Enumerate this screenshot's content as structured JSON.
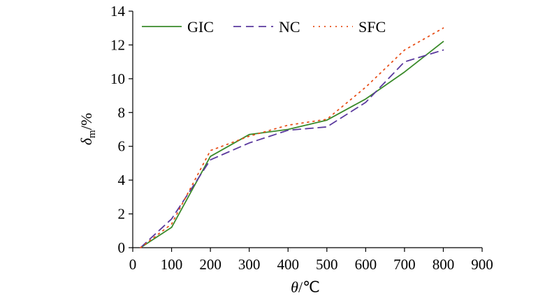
{
  "chart_data": {
    "type": "line",
    "x": [
      20,
      100,
      200,
      300,
      400,
      500,
      600,
      700,
      800
    ],
    "series": [
      {
        "name": "GIC",
        "values": [
          0,
          1.2,
          5.4,
          6.7,
          7.0,
          7.55,
          8.8,
          10.4,
          12.2
        ],
        "color": "#3a8a2a",
        "style": "solid"
      },
      {
        "name": "NC",
        "values": [
          0,
          1.7,
          5.2,
          6.2,
          6.95,
          7.15,
          8.6,
          11.0,
          11.7
        ],
        "color": "#5b3a9e",
        "style": "dashed"
      },
      {
        "name": "SFC",
        "values": [
          0,
          1.4,
          5.75,
          6.6,
          7.25,
          7.6,
          9.5,
          11.7,
          13.0
        ],
        "color": "#e8501a",
        "style": "dotted"
      }
    ],
    "xlim": [
      0,
      900
    ],
    "ylim": [
      0,
      14
    ],
    "xticks": [
      "0",
      "100",
      "200",
      "300",
      "400",
      "500",
      "600",
      "700",
      "800",
      "900"
    ],
    "yticks": [
      "0",
      "2",
      "4",
      "6",
      "8",
      "10",
      "12",
      "14"
    ],
    "xlabel_symbol": "θ",
    "xlabel_unit": "/℃",
    "ylabel_symbol": "δ",
    "ylabel_sub": "m",
    "ylabel_unit": "/%",
    "grid": false,
    "legend": "top"
  }
}
